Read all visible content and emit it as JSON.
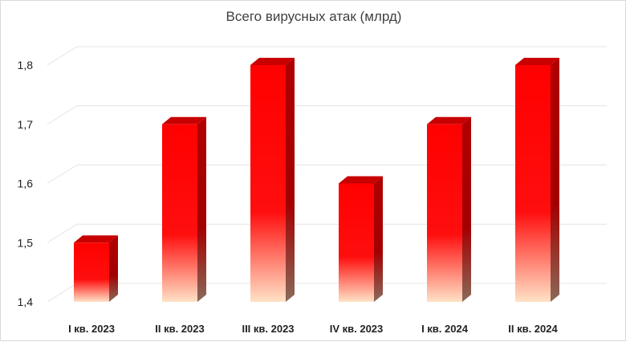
{
  "chart_data": {
    "type": "bar",
    "title": "Всего вирусных атак (млрд)",
    "xlabel": "",
    "ylabel": "",
    "categories": [
      "I кв. 2023",
      "II кв. 2023",
      "III кв. 2023",
      "IV кв. 2023",
      "I кв. 2024",
      "II кв. 2024"
    ],
    "series": [
      {
        "values": [
          1.5,
          1.7,
          1.8,
          1.6,
          1.7,
          1.8
        ]
      }
    ],
    "ylim": [
      1.4,
      1.8
    ],
    "yticks": [
      "1,4",
      "1,5",
      "1,6",
      "1,7",
      "1,8"
    ],
    "ytick_values": [
      1.4,
      1.5,
      1.6,
      1.7,
      1.8
    ],
    "grid": true,
    "legend": "none",
    "style": "3d-column",
    "colors": {
      "bar_top": "#ff0000",
      "bar_bottom": "#ffe0c0",
      "bar_side": "#a80000",
      "bar_cap": "#c80000"
    }
  }
}
